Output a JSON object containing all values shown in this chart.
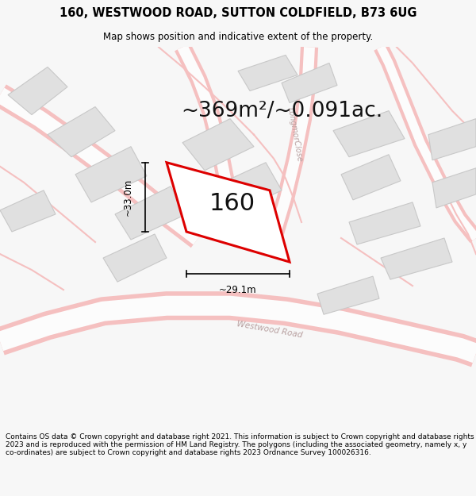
{
  "title_line1": "160, WESTWOOD ROAD, SUTTON COLDFIELD, B73 6UG",
  "title_line2": "Map shows position and indicative extent of the property.",
  "area_text": "~369m²/~0.091ac.",
  "property_number": "160",
  "dim_width": "~29.1m",
  "dim_height": "~33.0m",
  "footer": "Contains OS data © Crown copyright and database right 2021. This information is subject to Crown copyright and database rights 2023 and is reproduced with the permission of HM Land Registry. The polygons (including the associated geometry, namely x, y co-ordinates) are subject to Crown copyright and database rights 2023 Ordnance Survey 100026316.",
  "bg_color": "#f7f7f7",
  "map_bg": "#ffffff",
  "road_color": "#f5c0c0",
  "road_fill": "#fafafa",
  "building_fill": "#e0e0e0",
  "building_edge": "#c8c8c8",
  "highlight_fill": "#ffffff",
  "highlight_edge": "#dd0000",
  "road_label_color": "#b8a0a0",
  "dim_color": "#111111",
  "title_fontsize": 10.5,
  "subtitle_fontsize": 8.5,
  "area_fontsize": 19,
  "label_fontsize": 22,
  "footer_fontsize": 6.5
}
